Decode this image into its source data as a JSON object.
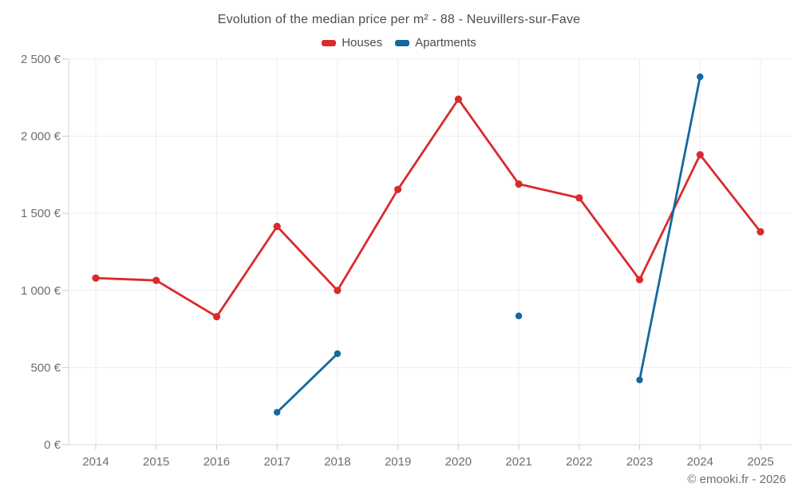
{
  "title": "Evolution of the median price per m² - 88 - Neuvillers-sur-Fave",
  "legend": {
    "items": [
      {
        "label": "Houses",
        "color": "#d92b2e"
      },
      {
        "label": "Apartments",
        "color": "#15689e"
      }
    ]
  },
  "credits": "© emooki.fr - 2026",
  "colors": {
    "houses": "#d92b2e",
    "apartments": "#15689e",
    "gridline": "#ededed",
    "axis_line": "#d9d9d9",
    "tick": "#cccccc",
    "axis_text": "#6e6e6e"
  },
  "chart_data": {
    "type": "line",
    "title": "Evolution of the median price per m² - 88 - Neuvillers-sur-Fave",
    "x": [
      "2014",
      "2015",
      "2016",
      "2017",
      "2018",
      "2019",
      "2020",
      "2021",
      "2022",
      "2023",
      "2024",
      "2025"
    ],
    "series": [
      {
        "name": "Houses",
        "color": "#d92b2e",
        "marker_radius": 4.6,
        "values": [
          1080,
          1065,
          830,
          1415,
          1000,
          1655,
          2240,
          1690,
          1600,
          1070,
          1880,
          1380
        ]
      },
      {
        "name": "Apartments",
        "color": "#15689e",
        "marker_radius": 4.2,
        "values": [
          null,
          null,
          null,
          210,
          590,
          null,
          null,
          835,
          null,
          420,
          2385,
          null
        ]
      }
    ],
    "xlabel": "",
    "ylabel": "",
    "ylim": [
      0,
      2500
    ],
    "ytick_step": 500,
    "ytick_labels": [
      "0 €",
      "500 €",
      "1 000 €",
      "1 500 €",
      "2 000 €",
      "2 500 €"
    ],
    "grid": true,
    "legend_position": "top",
    "unit": "€"
  }
}
